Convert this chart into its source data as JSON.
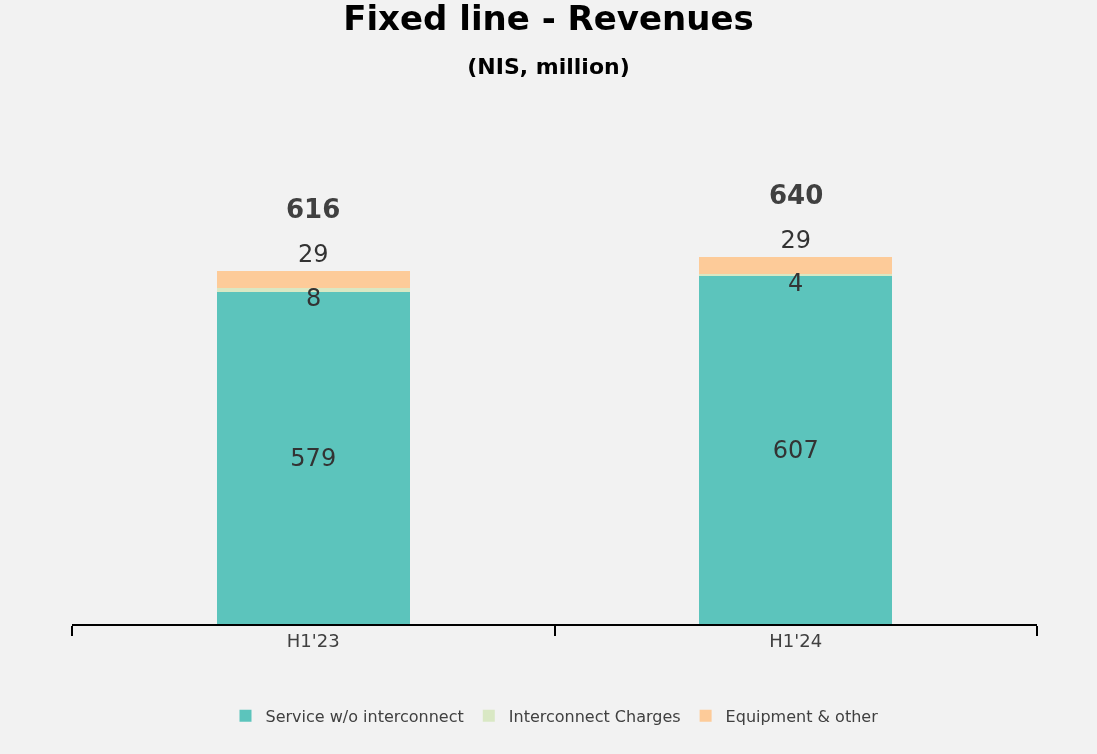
{
  "chart_data": {
    "type": "bar",
    "title": "Fixed line - Revenues",
    "subtitle": "(NIS, million)",
    "categories": [
      "H1'23",
      "H1'24"
    ],
    "stacked": true,
    "series": [
      {
        "name": "Service w/o interconnect",
        "color": "#5cc4bc",
        "values": [
          579,
          607
        ]
      },
      {
        "name": "Interconnect Charges",
        "color": "#d9e8c4",
        "values": [
          8,
          4
        ]
      },
      {
        "name": "Equipment & other",
        "color": "#fdcb99",
        "values": [
          29,
          29
        ]
      }
    ],
    "data_labels": true,
    "totals": [
      "616",
      "640"
    ],
    "legend": "bottom",
    "tick_labels": "x",
    "grid": false
  }
}
